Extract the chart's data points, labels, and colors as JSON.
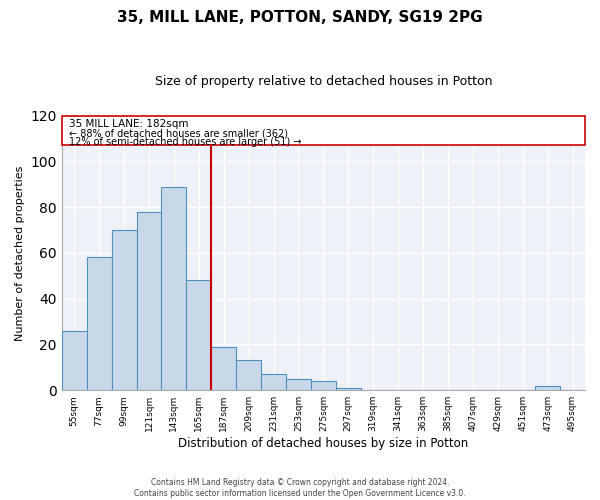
{
  "title": "35, MILL LANE, POTTON, SANDY, SG19 2PG",
  "subtitle": "Size of property relative to detached houses in Potton",
  "xlabel": "Distribution of detached houses by size in Potton",
  "ylabel": "Number of detached properties",
  "bin_labels": [
    "55sqm",
    "77sqm",
    "99sqm",
    "121sqm",
    "143sqm",
    "165sqm",
    "187sqm",
    "209sqm",
    "231sqm",
    "253sqm",
    "275sqm",
    "297sqm",
    "319sqm",
    "341sqm",
    "363sqm",
    "385sqm",
    "407sqm",
    "429sqm",
    "451sqm",
    "473sqm",
    "495sqm"
  ],
  "bar_values": [
    26,
    58,
    70,
    78,
    89,
    48,
    19,
    13,
    7,
    5,
    4,
    1,
    0,
    0,
    0,
    0,
    0,
    0,
    0,
    2,
    0
  ],
  "bar_color": "#c8d8e8",
  "bar_edge_color": "#5090c0",
  "ref_line_color": "#cc0000",
  "reference_line_label": "35 MILL LANE: 182sqm",
  "annotation_line1": "← 88% of detached houses are smaller (362)",
  "annotation_line2": "12% of semi-detached houses are larger (51) →",
  "ylim": [
    0,
    120
  ],
  "yticks": [
    0,
    20,
    40,
    60,
    80,
    100,
    120
  ],
  "footer_line1": "Contains HM Land Registry data © Crown copyright and database right 2024.",
  "footer_line2": "Contains public sector information licensed under the Open Government Licence v3.0.",
  "bg_color": "#eef2f8"
}
